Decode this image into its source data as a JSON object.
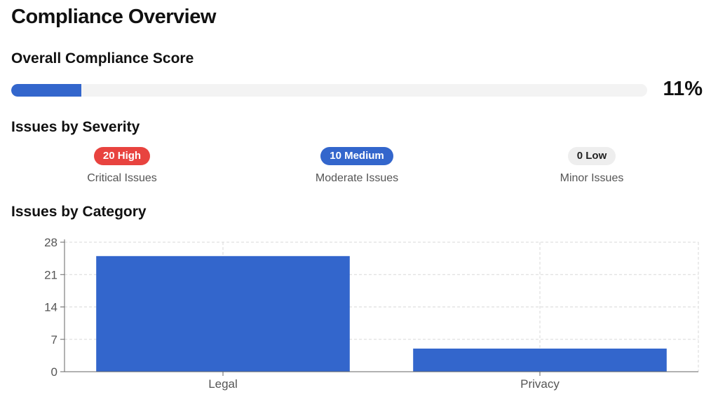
{
  "header": {
    "title": "Compliance Overview"
  },
  "score": {
    "title": "Overall Compliance Score",
    "value_label": "11%",
    "value_fraction": 0.11,
    "fill_color": "#3366cc",
    "track_color": "#f3f3f3"
  },
  "severity": {
    "title": "Issues by Severity",
    "items": [
      {
        "badge": "20 High",
        "caption": "Critical Issues",
        "color": "#e8433f"
      },
      {
        "badge": "10 Medium",
        "caption": "Moderate Issues",
        "color": "#3366cc"
      },
      {
        "badge": "0 Low",
        "caption": "Minor Issues",
        "color": "#eeeeee"
      }
    ]
  },
  "category": {
    "title": "Issues by Category"
  },
  "chart_data": {
    "type": "bar",
    "categories": [
      "Legal",
      "Privacy"
    ],
    "values": [
      25,
      5
    ],
    "y_ticks": [
      0,
      7,
      14,
      21,
      28
    ],
    "ylim": [
      0,
      28
    ],
    "grid": true,
    "bar_color": "#3366cc"
  }
}
